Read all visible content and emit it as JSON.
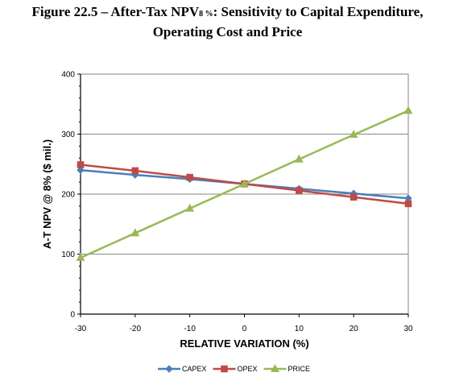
{
  "title": {
    "line1_prefix": "Figure 22.5 – After-Tax NPV",
    "line1_subscript": "8 %",
    "line1_suffix": ": Sensitivity to Capital Expenditure,",
    "line2": "Operating Cost and Price"
  },
  "chart_data": {
    "type": "line",
    "xlabel": "RELATIVE VARIATION (%)",
    "ylabel": "A-T NPV @ 8%  ($ mil.)",
    "x": [
      -30,
      -20,
      -10,
      0,
      10,
      20,
      30
    ],
    "xlim": [
      -30,
      30
    ],
    "ylim": [
      0,
      400
    ],
    "xticks": [
      "-30",
      "-20",
      "-10",
      "0",
      "10",
      "20",
      "30"
    ],
    "yticks": [
      "0",
      "100",
      "200",
      "300",
      "400"
    ],
    "grid": "horizontal",
    "legend_position": "bottom",
    "series": [
      {
        "name": "CAPEX",
        "color": "#4a7ebb",
        "marker": "diamond",
        "values": [
          240,
          232,
          225,
          217,
          209,
          201,
          193
        ]
      },
      {
        "name": "OPEX",
        "color": "#be4b48",
        "marker": "square",
        "values": [
          249,
          239,
          228,
          217,
          206,
          195,
          184
        ]
      },
      {
        "name": "PRICE",
        "color": "#98b954",
        "marker": "triangle",
        "values": [
          94,
          135,
          176,
          217,
          258,
          299,
          339
        ]
      }
    ]
  }
}
